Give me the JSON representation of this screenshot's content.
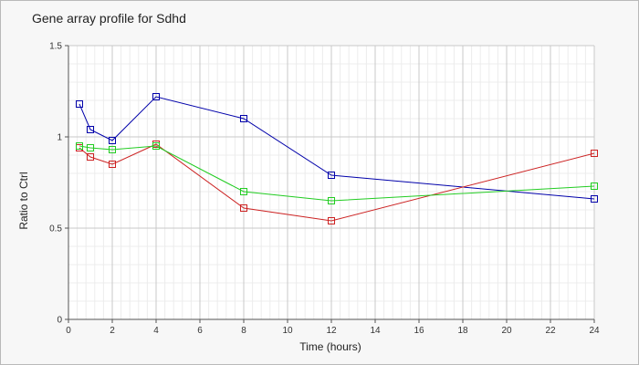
{
  "chart_data": {
    "type": "line",
    "title": "Gene array profile for Sdhd",
    "xlabel": "Time (hours)",
    "ylabel": "Ratio to Ctrl",
    "xlim": [
      0,
      24
    ],
    "ylim": [
      0,
      1.5
    ],
    "xticks": [
      0,
      2,
      4,
      6,
      8,
      10,
      12,
      14,
      16,
      18,
      20,
      22,
      24
    ],
    "yticks": [
      0,
      0.5,
      1,
      1.5
    ],
    "ytick_labels": [
      "0",
      "0.5",
      "1",
      "1.5"
    ],
    "grid": true,
    "legend": "none",
    "series": [
      {
        "color": "#0000aa",
        "x": [
          0.5,
          1,
          2,
          4,
          8,
          12,
          24
        ],
        "y": [
          1.18,
          1.04,
          0.98,
          1.22,
          1.1,
          0.79,
          0.66
        ]
      },
      {
        "color": "#cc2222",
        "x": [
          0.5,
          1,
          2,
          4,
          8,
          12,
          24
        ],
        "y": [
          0.94,
          0.89,
          0.85,
          0.96,
          0.61,
          0.54,
          0.91
        ]
      },
      {
        "color": "#22cc22",
        "x": [
          0.5,
          1,
          2,
          4,
          8,
          12,
          24
        ],
        "y": [
          0.95,
          0.94,
          0.93,
          0.95,
          0.7,
          0.65,
          0.73
        ]
      }
    ]
  }
}
